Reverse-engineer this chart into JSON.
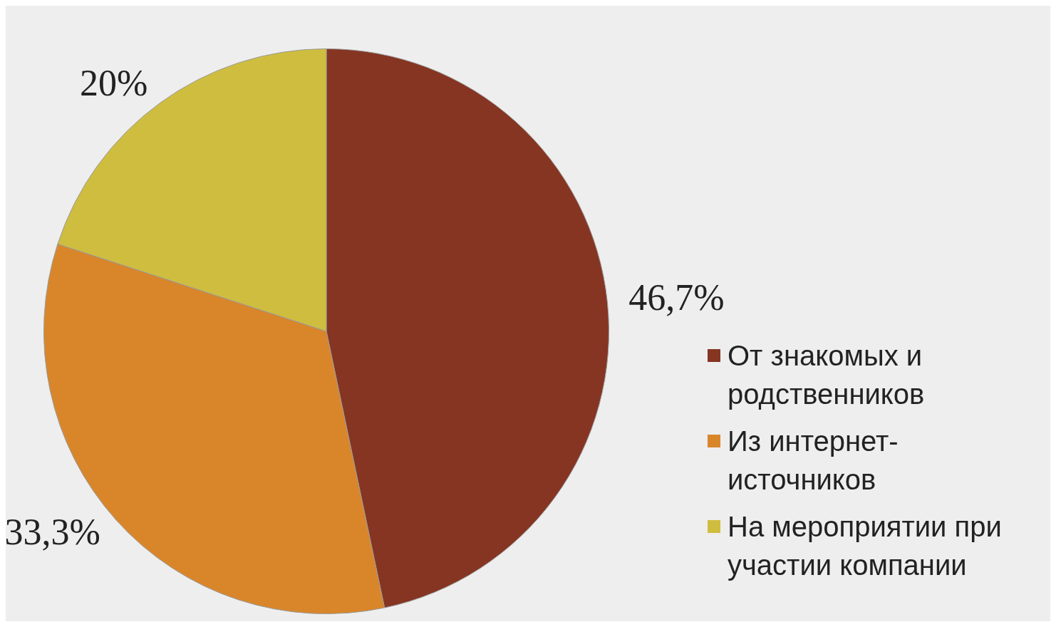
{
  "chart_data": {
    "type": "pie",
    "categories": [
      "От знакомых и родственников",
      "Из интернет-источников",
      "На мероприятии при участии компании"
    ],
    "values": [
      46.7,
      33.3,
      20
    ],
    "colors": [
      "#853522",
      "#d9862a",
      "#cfbd3f"
    ],
    "value_labels": [
      "46,7%",
      "33,3%",
      "20%"
    ],
    "legend": "bottom right"
  }
}
